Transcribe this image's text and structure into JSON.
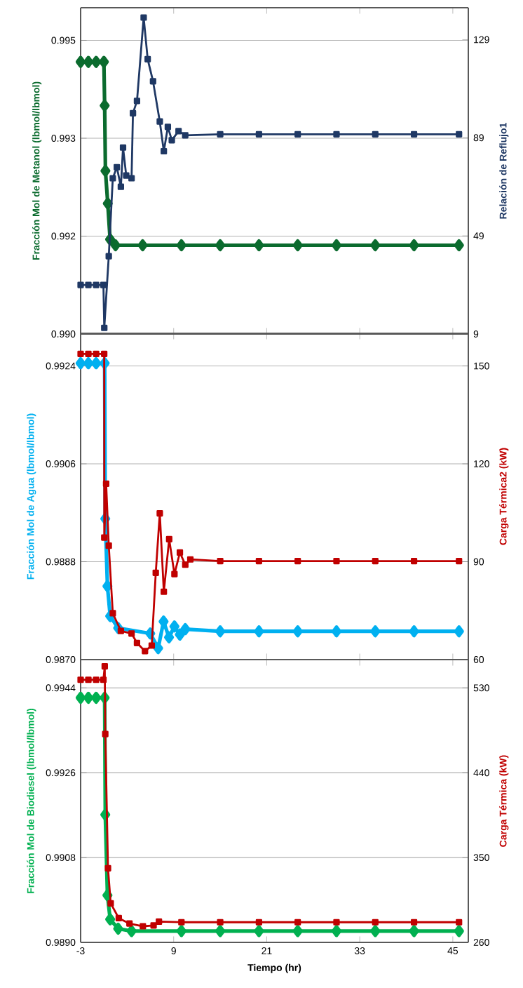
{
  "chart_data": [
    {
      "type": "line",
      "ylabel": "Fracción Mol de Metanol (lbmol/lbmol)",
      "y2label": "Relación de Reflujo1",
      "xlim": [
        -3,
        47
      ],
      "xticks": [
        -3,
        9,
        21,
        33,
        45
      ],
      "ylim": [
        0.99,
        0.995
      ],
      "yticks": [
        {
          "value": 0.99,
          "label": "0.990"
        },
        {
          "value": 0.9915,
          "label": "0.992"
        },
        0.993,
        {
          "value": 0.9945,
          "label": "0.995"
        }
      ],
      "y2lim": [
        9,
        142
      ],
      "y2ticks": [
        9,
        49,
        89,
        129
      ],
      "grid": "y",
      "tick_labels": "y",
      "series": [
        {
          "color": "#0b6b2e",
          "marker": "diamond",
          "x": [
            -3,
            -2,
            -1,
            0,
            0.1,
            0.2,
            0.5,
            0.8,
            1.5,
            5,
            10,
            15,
            20,
            25,
            30,
            35,
            40,
            45.8
          ],
          "values": [
            0.99417,
            0.99417,
            0.99417,
            0.99417,
            0.9935,
            0.9925,
            0.992,
            0.99145,
            0.99136,
            0.99136,
            0.99136,
            0.99136,
            0.99136,
            0.99136,
            0.99136,
            0.99136,
            0.99136,
            0.99136
          ]
        },
        {
          "color": "#1f3864",
          "marker": "square",
          "axis": "y2",
          "x": [
            -3,
            -2,
            -1,
            -0.06,
            0.05,
            0.63,
            1.15,
            1.67,
            2.19,
            2.47,
            2.88,
            3.57,
            3.75,
            4.27,
            5.13,
            5.65,
            6.34,
            7.21,
            7.73,
            8.25,
            8.76,
            9.63,
            10.49,
            15,
            20,
            25,
            30,
            35,
            40,
            45.8
          ],
          "values": [
            29,
            29,
            29,
            29,
            11.5,
            40.7,
            72.5,
            77,
            69,
            85,
            73.6,
            72.5,
            99,
            104,
            138,
            121,
            112,
            95.6,
            83.5,
            93.4,
            88,
            91.7,
            90,
            90.4,
            90.4,
            90.4,
            90.4,
            90.4,
            90.4,
            90.4
          ]
        }
      ]
    },
    {
      "type": "line",
      "ylabel": "Fracción Mol de Agua (lbmol/lbmol)",
      "y2label": "Carga Térmica2 (kW)",
      "xlim": [
        -3,
        47
      ],
      "xticks": [
        -3,
        9,
        21,
        33,
        45
      ],
      "ylim": [
        0.987,
        0.993
      ],
      "yticks": [
        {
          "value": 0.987,
          "label": "0.9870"
        },
        0.9888,
        0.9906,
        0.9924
      ],
      "y2lim": [
        60,
        160
      ],
      "y2ticks": [
        60,
        90,
        120,
        150
      ],
      "grid": "y",
      "tick_labels": "y",
      "series": [
        {
          "color": "#00b0f0",
          "marker": "diamond",
          "x": [
            -3,
            -2,
            -1,
            0.1,
            0.18,
            0.46,
            0.81,
            1.84,
            5.98,
            7.0,
            7.7,
            8.4,
            9.1,
            9.8,
            10.5,
            15,
            20,
            25,
            30,
            35,
            40,
            45.8
          ],
          "values": [
            0.99245,
            0.99245,
            0.99245,
            0.99245,
            0.98959,
            0.98835,
            0.9878,
            0.98758,
            0.98748,
            0.98721,
            0.9877,
            0.98741,
            0.98761,
            0.98746,
            0.98756,
            0.98752,
            0.98752,
            0.98752,
            0.98752,
            0.98752,
            0.98752,
            0.98752
          ]
        },
        {
          "color": "#c00000",
          "marker": "square",
          "axis": "y2",
          "x": [
            -3,
            -2,
            -1,
            0.04,
            0.05,
            0.29,
            0.63,
            1.15,
            2.19,
            3.57,
            4.27,
            5.3,
            6.17,
            6.69,
            7.21,
            7.73,
            8.42,
            9.1,
            9.8,
            10.5,
            11.15,
            15,
            20,
            25,
            30,
            35,
            40,
            45.8
          ],
          "values": [
            153.7,
            153.7,
            153.7,
            153.7,
            97.4,
            113.9,
            94.9,
            74.2,
            68.8,
            68,
            65.1,
            62.6,
            64.3,
            86.6,
            104.8,
            80.8,
            96.9,
            86.2,
            92.8,
            89.1,
            90.7,
            90.2,
            90.2,
            90.2,
            90.2,
            90.2,
            90.2,
            90.2
          ]
        }
      ]
    },
    {
      "type": "line",
      "xlabel": "Tiempo (hr)",
      "ylabel": "Fracción Mol de Biodiesel (lbmol/lbmol)",
      "y2label": "Carga Térmica (kW)",
      "xlim": [
        -3,
        47
      ],
      "xticks": [
        -3,
        9,
        21,
        33,
        45
      ],
      "ylim": [
        0.989,
        0.995
      ],
      "yticks": [
        {
          "value": 0.989,
          "label": "0.9890"
        },
        0.9908,
        0.9926,
        0.9944
      ],
      "y2lim": [
        260,
        560
      ],
      "y2ticks": [
        260,
        350,
        440,
        530
      ],
      "grid": "y",
      "series": [
        {
          "color": "#00b050",
          "marker": "diamond",
          "x": [
            -3,
            -2,
            -1,
            0.1,
            0.18,
            0.46,
            0.81,
            1.84,
            3.57,
            10,
            15,
            20,
            25,
            30,
            35,
            40,
            45.8
          ],
          "values": [
            0.99419,
            0.99419,
            0.99419,
            0.99419,
            0.99171,
            0.99,
            0.98949,
            0.98929,
            0.98924,
            0.98924,
            0.98924,
            0.98924,
            0.98924,
            0.98924,
            0.98924,
            0.98924,
            0.98924
          ]
        },
        {
          "color": "#c00000",
          "marker": "square",
          "axis": "y2",
          "x": [
            -3,
            -2,
            -1,
            -0.06,
            0.11,
            0.18,
            0.53,
            0.88,
            1.92,
            3.3,
            5.03,
            6.41,
            7.1,
            10,
            15,
            20,
            25,
            30,
            35,
            40,
            45.8
          ],
          "values": [
            538.6,
            538.6,
            538.6,
            538.6,
            552.9,
            481,
            338.6,
            301.4,
            285.7,
            280,
            277.1,
            278,
            282,
            281.4,
            281.4,
            281.4,
            281.4,
            281.4,
            281.4,
            281.4,
            281.4
          ]
        }
      ]
    }
  ]
}
